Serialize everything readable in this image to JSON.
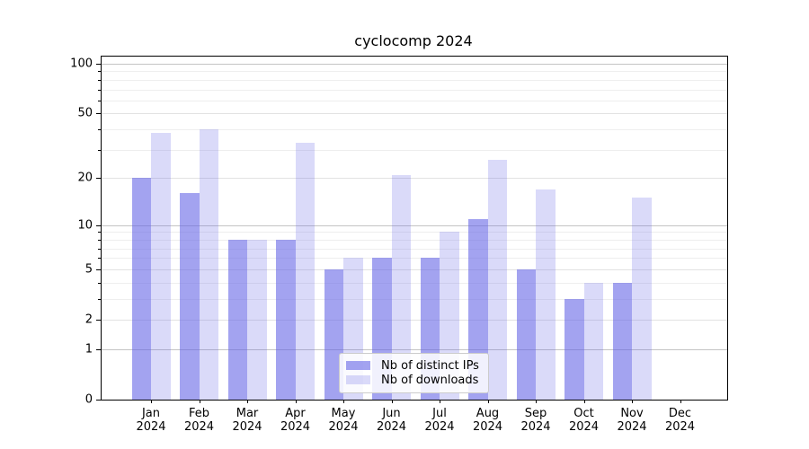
{
  "title": "cyclocomp 2024",
  "chart_data": {
    "type": "bar",
    "title": "cyclocomp 2024",
    "categories": [
      "Jan",
      "Feb",
      "Mar",
      "Apr",
      "May",
      "Jun",
      "Jul",
      "Aug",
      "Sep",
      "Oct",
      "Nov",
      "Dec"
    ],
    "category_year": "2024",
    "series": [
      {
        "name": "Nb of distinct IPs",
        "color": "rgba(102,102,230,0.60)",
        "values": [
          20,
          16,
          8,
          8,
          5,
          6,
          6,
          11,
          5,
          3,
          4,
          0
        ]
      },
      {
        "name": "Nb of downloads",
        "color": "rgba(102,102,230,0.24)",
        "values": [
          38,
          40,
          8,
          33,
          6,
          21,
          9,
          26,
          17,
          4,
          15,
          0
        ]
      }
    ],
    "y_axis": {
      "scale": "log10(1+v)",
      "tick_labels": [
        0,
        1,
        2,
        5,
        10,
        20,
        50,
        100
      ],
      "decade_gridlines": [
        1,
        10,
        100
      ],
      "labeled_gridlines": [
        2,
        5,
        20,
        50
      ],
      "minor_gridlines": [
        3,
        4,
        6,
        7,
        8,
        9,
        30,
        40,
        60,
        70,
        80,
        90
      ],
      "top_value": 110
    },
    "legend_position": "lower center",
    "grid": true
  },
  "colors": {
    "bar_base": "#6666e6",
    "axis": "#000000",
    "decade_grid": "#c4c4c4",
    "light_grid": "#e7e7e7",
    "legend_border": "#cccccc"
  }
}
